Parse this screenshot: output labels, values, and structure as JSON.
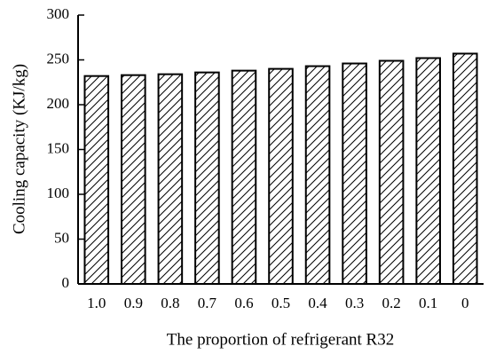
{
  "chart_data": {
    "type": "bar",
    "x_label": "The proportion of refrigerant R32",
    "y_label": "Cooling capacity (KJ/kg)",
    "categories": [
      "1.0",
      "0.9",
      "0.8",
      "0.7",
      "0.6",
      "0.5",
      "0.4",
      "0.3",
      "0.2",
      "0.1",
      "0"
    ],
    "values": [
      232,
      233,
      234,
      236,
      238,
      240,
      243,
      246,
      249,
      252,
      257
    ],
    "color": "#000000",
    "ylim": [
      0,
      300
    ],
    "yticks": [
      0,
      50,
      100,
      150,
      200,
      250,
      300
    ]
  }
}
